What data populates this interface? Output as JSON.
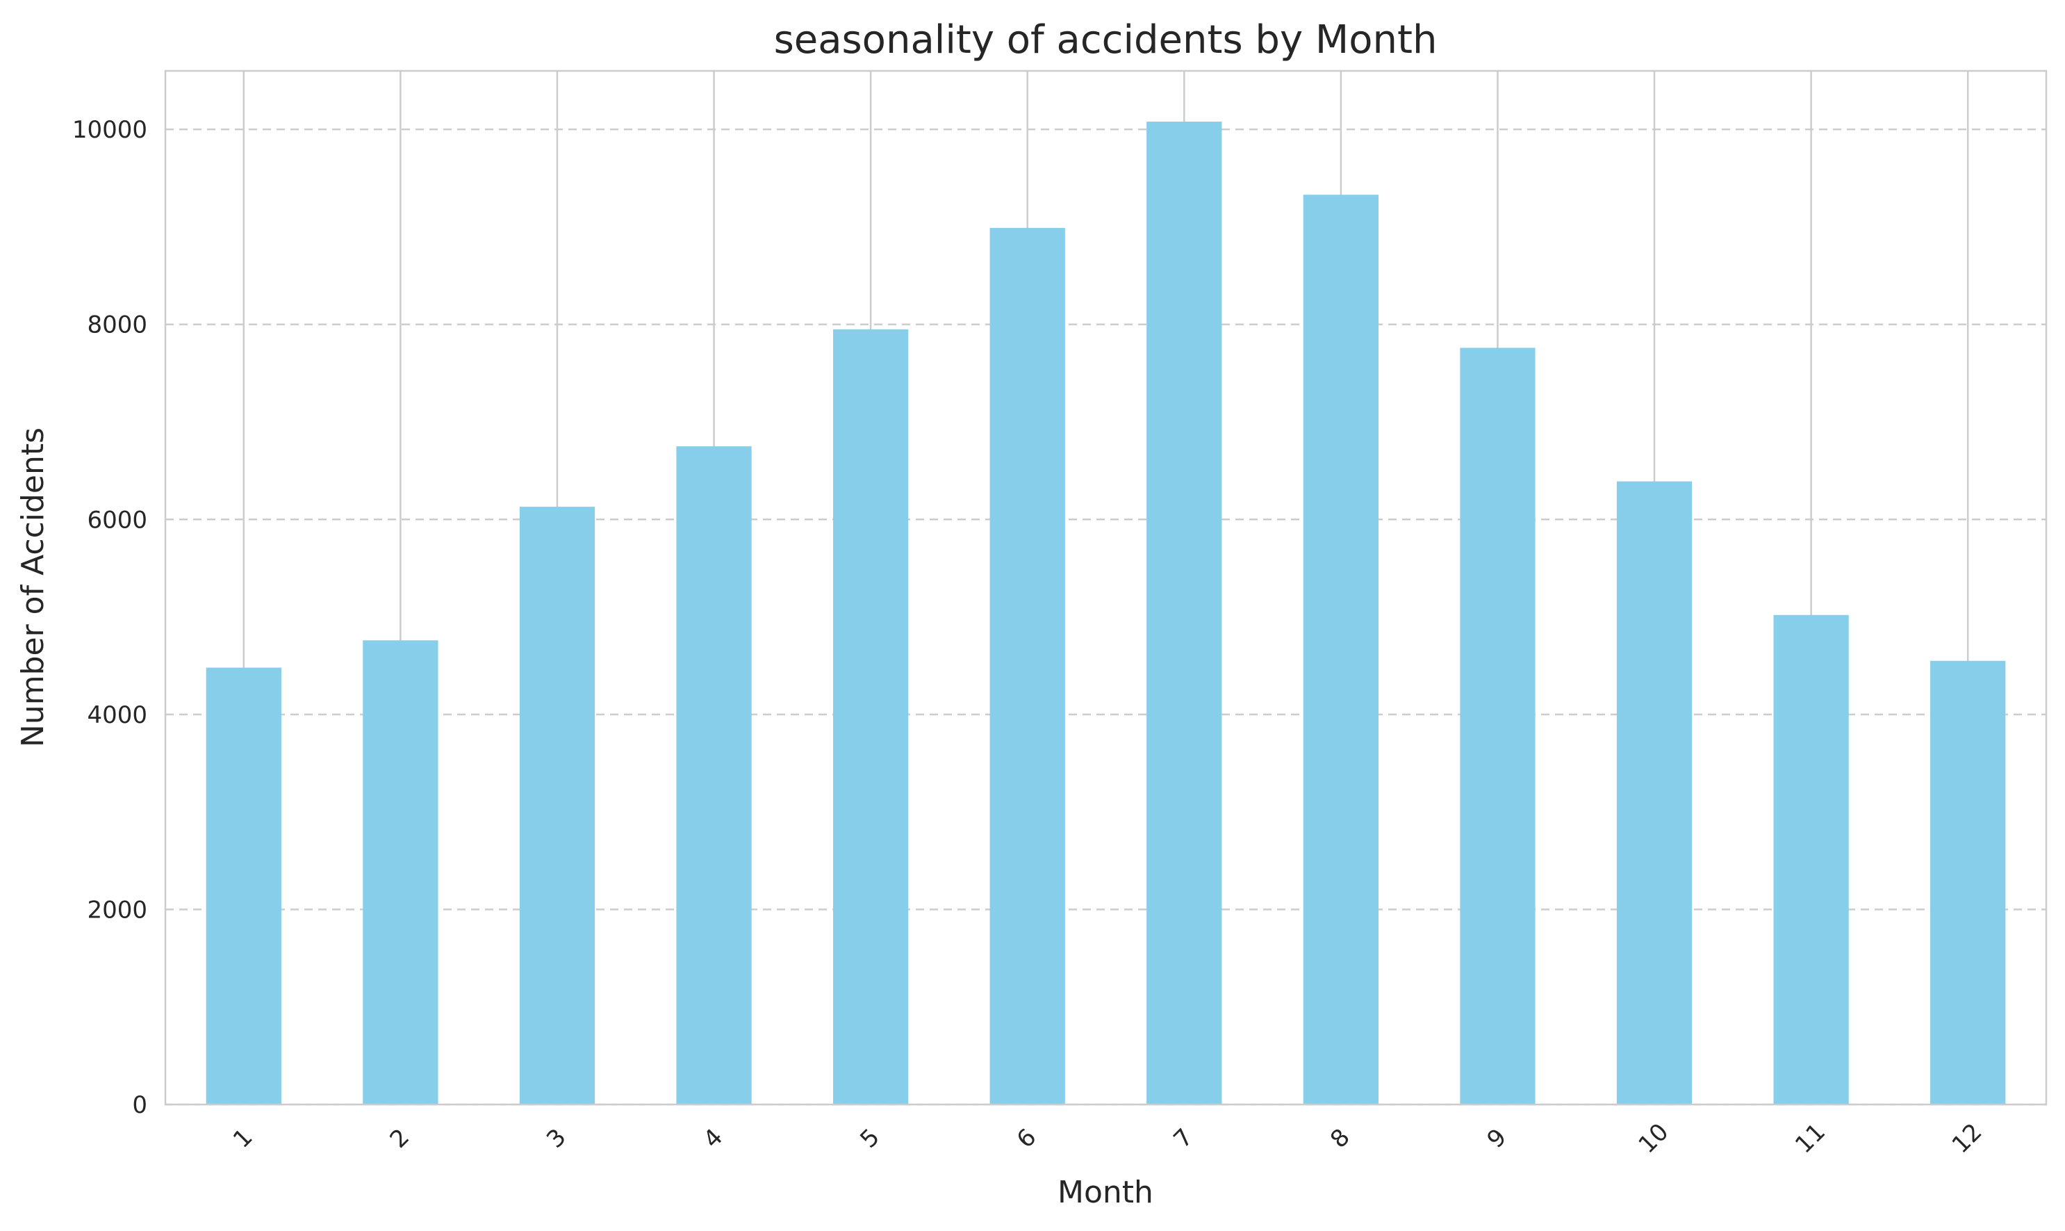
{
  "chart_data": {
    "type": "bar",
    "title": "seasonality of accidents by Month",
    "xlabel": "Month",
    "ylabel": "Number of Accidents",
    "categories": [
      "1",
      "2",
      "3",
      "4",
      "5",
      "6",
      "7",
      "8",
      "9",
      "10",
      "11",
      "12"
    ],
    "values": [
      4480,
      4760,
      6130,
      6750,
      7950,
      8990,
      10080,
      9330,
      7760,
      6390,
      5020,
      4550
    ],
    "ylim": [
      0,
      10600
    ],
    "yticks": [
      0,
      2000,
      4000,
      6000,
      8000,
      10000
    ],
    "ytick_labels": [
      "0",
      "2000",
      "4000",
      "6000",
      "8000",
      "10000"
    ],
    "xtick_rotation_deg": -45,
    "grid": {
      "horizontal": "dashed",
      "vertical": "solid"
    },
    "legend": "none",
    "colors": {
      "bar": "#87CEEB",
      "grid": "#cccccc",
      "axis": "#cccccc",
      "text": "#262626",
      "background": "#ffffff"
    }
  }
}
